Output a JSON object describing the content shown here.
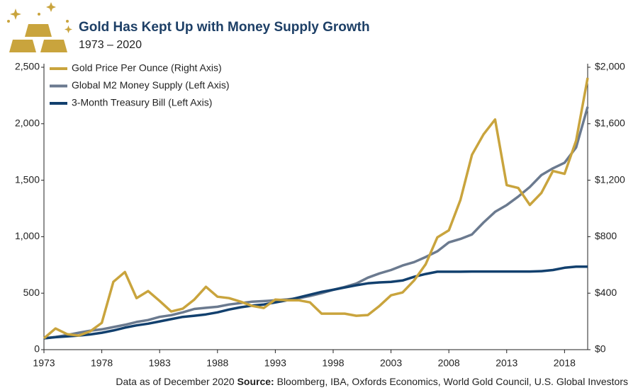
{
  "chart_data": {
    "type": "line",
    "title": "Gold Has Kept Up with Money Supply Growth",
    "subtitle": "1973 – 2020",
    "note": "Data as of December 2020",
    "source_label": "Source:",
    "source": "Bloomberg, IBA, Oxfords Economics, World Gold Council, U.S. Global Investors",
    "x": [
      1973,
      1974,
      1975,
      1976,
      1977,
      1978,
      1979,
      1980,
      1981,
      1982,
      1983,
      1984,
      1985,
      1986,
      1987,
      1988,
      1989,
      1990,
      1991,
      1992,
      1993,
      1994,
      1995,
      1996,
      1997,
      1998,
      1999,
      2000,
      2001,
      2002,
      2003,
      2004,
      2005,
      2006,
      2007,
      2008,
      2009,
      2010,
      2011,
      2012,
      2013,
      2014,
      2015,
      2016,
      2017,
      2018,
      2019,
      2020
    ],
    "series": [
      {
        "name": "Gold Price Per Ounce (Right Axis)",
        "color": "#c9a43d",
        "axis": "y2",
        "values": [
          80,
          150,
          110,
          100,
          130,
          190,
          480,
          550,
          365,
          415,
          345,
          270,
          290,
          355,
          445,
          375,
          365,
          340,
          310,
          295,
          355,
          350,
          350,
          335,
          255,
          255,
          255,
          240,
          245,
          310,
          385,
          405,
          490,
          605,
          795,
          845,
          1060,
          1380,
          1525,
          1630,
          1165,
          1145,
          1025,
          1110,
          1265,
          1245,
          1480,
          1925
        ]
      },
      {
        "name": "Global M2 Money Supply (Left Axis)",
        "color": "#6b7a8f",
        "values": [
          100,
          112,
          130,
          150,
          168,
          180,
          200,
          220,
          245,
          262,
          290,
          305,
          330,
          360,
          370,
          380,
          400,
          412,
          425,
          430,
          437,
          445,
          455,
          475,
          500,
          530,
          555,
          585,
          637,
          675,
          705,
          745,
          775,
          820,
          870,
          950,
          980,
          1020,
          1125,
          1220,
          1280,
          1355,
          1440,
          1545,
          1605,
          1655,
          1790,
          2150
        ]
      },
      {
        "name": "3-Month Treasury Bill (Left Axis)",
        "color": "#12406e",
        "values": [
          100,
          110,
          118,
          125,
          135,
          150,
          170,
          195,
          215,
          230,
          250,
          270,
          290,
          300,
          312,
          330,
          355,
          375,
          390,
          400,
          418,
          437,
          462,
          487,
          512,
          530,
          550,
          570,
          587,
          595,
          600,
          612,
          645,
          670,
          690,
          690,
          690,
          692,
          692,
          692,
          692,
          692,
          692,
          695,
          705,
          725,
          735,
          735
        ]
      }
    ],
    "xlim": [
      1973,
      2020
    ],
    "xticks": [
      1973,
      1978,
      1983,
      1988,
      1993,
      1998,
      2003,
      2008,
      2013,
      2018
    ],
    "ylim": [
      0,
      2500
    ],
    "yticks": [
      0,
      500,
      {
        "value": 1000,
        "label": "1,000"
      },
      {
        "value": 1500,
        "label": "1,500"
      },
      {
        "value": 2000,
        "label": "2,000"
      },
      {
        "value": 2500,
        "label": "2,500"
      }
    ],
    "y2lim": [
      0,
      2000
    ],
    "y2ticks": [
      {
        "value": 0,
        "label": "$0"
      },
      {
        "value": 400,
        "label": "$400"
      },
      {
        "value": 800,
        "label": "$800"
      },
      {
        "value": 1200,
        "label": "$1,200"
      },
      {
        "value": 1600,
        "label": "$1,600"
      },
      {
        "value": 2000,
        "label": "$2,000"
      }
    ]
  }
}
